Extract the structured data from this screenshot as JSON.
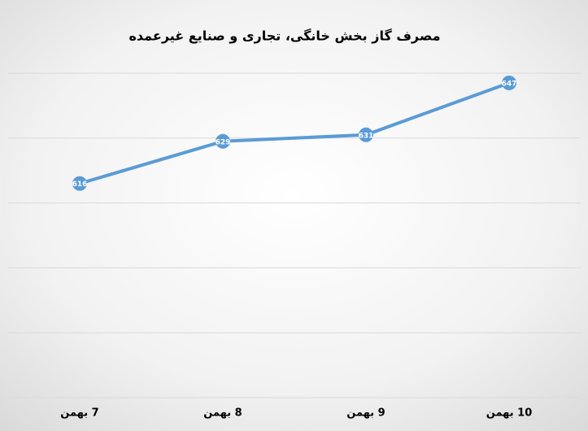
{
  "chart_data": {
    "type": "line",
    "title": "مصرف گاز بخش خانگی، تجاری و صنایع غیرعمده",
    "categories": [
      "7 بهمن",
      "8 بهمن",
      "9 بهمن",
      "10 بهمن"
    ],
    "values": [
      616,
      629,
      631,
      647
    ],
    "color": "#5b9bd5",
    "ylim": [
      550,
      650
    ],
    "yticks": [
      550,
      570,
      590,
      610,
      630,
      650
    ],
    "grid": true
  }
}
